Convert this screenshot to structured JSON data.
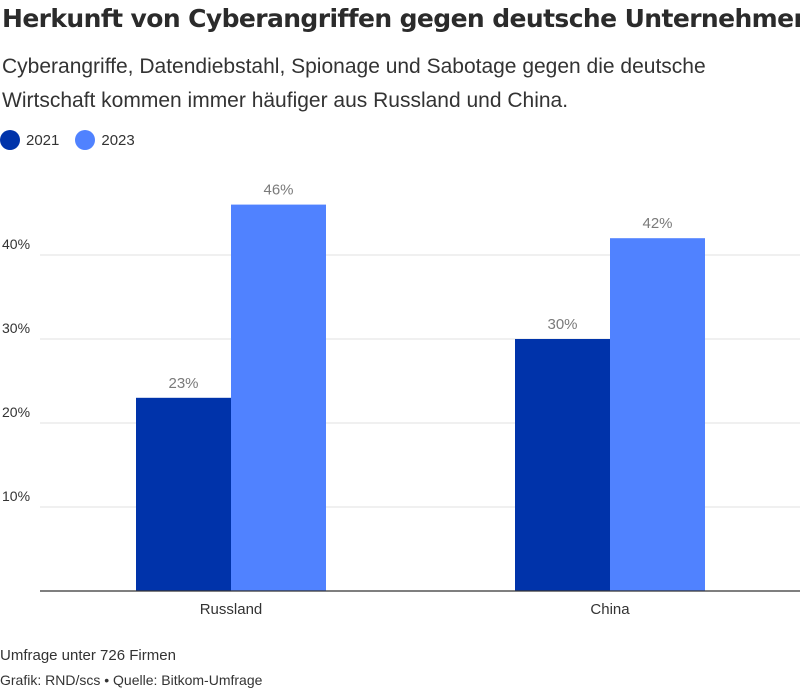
{
  "title": "Herkunft von Cyberangriffen gegen deutsche Unternehmen",
  "subtitle": "Cyberangriffe, Datendiebstahl, Spionage und Sabotage gegen die deutsche Wirtschaft kommen immer häufiger aus Russland und China.",
  "footer": {
    "note": "Umfrage unter 726 Firmen",
    "source": "Grafik: RND/scs • Quelle: Bitkom-Umfrage"
  },
  "chart_data": {
    "type": "bar",
    "categories": [
      "Russland",
      "China"
    ],
    "series": [
      {
        "name": "2021",
        "values": [
          23,
          30
        ],
        "labels": [
          "23%",
          "30%"
        ],
        "color": "#0033aa"
      },
      {
        "name": "2023",
        "values": [
          46,
          42
        ],
        "labels": [
          "46%",
          "42%"
        ],
        "color": "#5082ff"
      }
    ],
    "yticks": [
      10,
      20,
      30,
      40
    ],
    "ytick_labels": [
      "10%",
      "20%",
      "30%",
      "40%"
    ],
    "ylim": [
      0,
      48
    ],
    "grid": true,
    "legend_position": "top-left",
    "xlabel": "",
    "ylabel": ""
  }
}
